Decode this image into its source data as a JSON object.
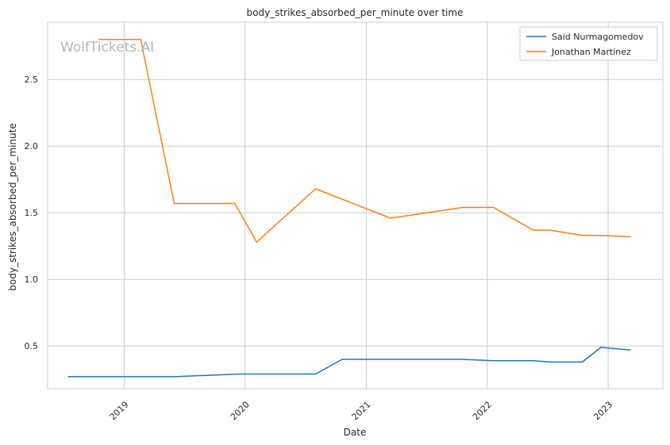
{
  "chart_data": {
    "type": "line",
    "title": "body_strikes_absorbed_per_minute over time",
    "xlabel": "Date",
    "ylabel": "body_strikes_absorbed_per_minute",
    "watermark": "WolfTickets.AI",
    "x_ticks": [
      "2019",
      "2020",
      "2021",
      "2022",
      "2023"
    ],
    "y_ticks": [
      "0.5",
      "1.0",
      "1.5",
      "2.0",
      "2.5"
    ],
    "xlim": [
      "2018-05-15",
      "2023-06-15"
    ],
    "ylim": [
      0.18,
      2.93
    ],
    "grid": true,
    "legend_position": "top-right",
    "series": [
      {
        "name": "Said Nurmagomedov",
        "color": "#1f77b4",
        "points": [
          [
            "2018-07-15",
            0.27
          ],
          [
            "2019-01-15",
            0.27
          ],
          [
            "2019-06-01",
            0.27
          ],
          [
            "2019-12-15",
            0.29
          ],
          [
            "2020-08-01",
            0.29
          ],
          [
            "2020-10-20",
            0.4
          ],
          [
            "2021-10-15",
            0.4
          ],
          [
            "2022-01-20",
            0.39
          ],
          [
            "2022-05-20",
            0.39
          ],
          [
            "2022-07-10",
            0.38
          ],
          [
            "2022-10-15",
            0.38
          ],
          [
            "2022-12-10",
            0.49
          ],
          [
            "2023-03-10",
            0.47
          ]
        ]
      },
      {
        "name": "Jonathan Martinez",
        "color": "#ff7f0e",
        "points": [
          [
            "2018-10-15",
            2.8
          ],
          [
            "2019-02-20",
            2.8
          ],
          [
            "2019-06-01",
            1.57
          ],
          [
            "2019-12-01",
            1.57
          ],
          [
            "2020-02-05",
            1.28
          ],
          [
            "2020-08-01",
            1.68
          ],
          [
            "2021-03-15",
            1.46
          ],
          [
            "2021-10-20",
            1.54
          ],
          [
            "2022-01-20",
            1.54
          ],
          [
            "2022-05-20",
            1.37
          ],
          [
            "2022-07-10",
            1.37
          ],
          [
            "2022-10-15",
            1.33
          ],
          [
            "2022-12-10",
            1.33
          ],
          [
            "2023-03-10",
            1.32
          ]
        ]
      }
    ]
  }
}
